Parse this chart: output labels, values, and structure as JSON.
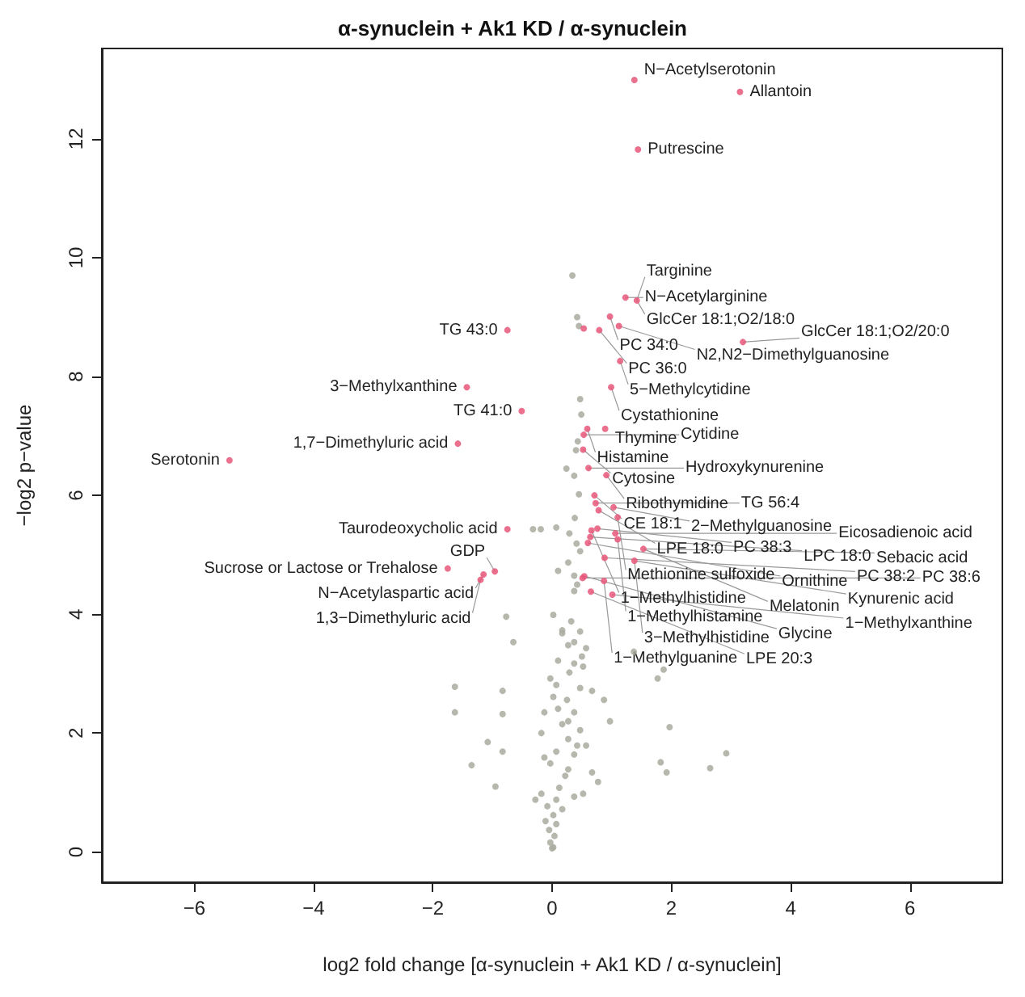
{
  "chart_data": {
    "type": "scatter",
    "title": "α-synuclein + Ak1 KD / α-synuclein",
    "xlabel": "log2 fold change [α-synuclein + Ak1 KD / α-synuclein]",
    "ylabel": "−log2 p−value",
    "xlim": [
      -7.55,
      7.55
    ],
    "ylim": [
      -0.51,
      13.52
    ],
    "xticks": [
      -6,
      -4,
      -2,
      0,
      2,
      4,
      6
    ],
    "yticks": [
      0,
      2,
      4,
      6,
      8,
      10,
      12
    ],
    "grid": false,
    "marker": "circle",
    "series": [
      {
        "color": "#a9ab9f",
        "x": [
          0.34,
          0.42,
          0.45,
          0.47,
          0.49,
          0.43,
          0.4,
          0.24,
          0.37,
          0.45,
          0.38,
          -0.19,
          -0.32,
          0.07,
          0.29,
          0.41,
          0.47,
          0.27,
          0.1,
          0.37,
          0.42,
          0.37,
          -0.77,
          0.02,
          0.32,
          0.47,
          0.17,
          -0.65,
          0.27,
          0.57,
          1.37,
          0.5,
          0.1,
          0.37,
          0.29,
          -0.03,
          0.07,
          -1.63,
          -0.83,
          1.87,
          1.77,
          0.47,
          0.67,
          0.87,
          0.25,
          0.1,
          0.37,
          -0.13,
          -1.63,
          -0.83,
          0.97,
          1.97,
          0.17,
          0.47,
          -0.18,
          0.27,
          0.57,
          -1.08,
          0.07,
          0.37,
          2.92,
          1.82,
          2.65,
          1.92,
          -1.35,
          -0.83,
          -0.03,
          0.27,
          0.67,
          0.77,
          -0.95,
          0.12,
          -0.18,
          0.37,
          -0.08,
          0.17,
          0.02,
          -0.11,
          0.07,
          -0.05,
          0.04,
          -0.03,
          0.0,
          0.02,
          0.17,
          0.37,
          0.52,
          0.02,
          0.27,
          0.42,
          -0.13,
          0.22,
          0.52,
          -0.28,
          0.07
        ],
        "values": [
          9.7,
          9.0,
          8.85,
          7.62,
          7.36,
          6.91,
          6.76,
          6.45,
          6.33,
          6.02,
          5.62,
          5.43,
          5.43,
          5.46,
          5.36,
          5.19,
          5.06,
          4.87,
          4.73,
          4.65,
          4.5,
          4.39,
          3.96,
          3.99,
          3.88,
          3.71,
          3.68,
          3.53,
          3.48,
          3.43,
          3.37,
          3.29,
          3.22,
          3.17,
          3.02,
          2.92,
          2.81,
          2.78,
          2.71,
          3.07,
          2.92,
          2.76,
          2.71,
          2.56,
          2.56,
          2.41,
          2.35,
          2.35,
          2.35,
          2.32,
          2.2,
          2.1,
          2.15,
          2.05,
          2.0,
          1.9,
          1.79,
          1.85,
          1.69,
          1.64,
          1.66,
          1.51,
          1.41,
          1.34,
          1.46,
          1.69,
          1.49,
          1.39,
          1.34,
          1.18,
          1.1,
          1.08,
          0.98,
          0.93,
          0.77,
          0.72,
          0.62,
          0.52,
          0.47,
          0.37,
          0.27,
          0.16,
          0.06,
          0.08,
          3.73,
          3.53,
          3.12,
          2.61,
          2.2,
          1.79,
          1.59,
          1.28,
          0.98,
          0.88,
          0.88
        ]
      },
      {
        "color": "#e8577a",
        "x": [
          1.38,
          3.15,
          1.44,
          1.23,
          1.42,
          0.97,
          0.53,
          0.79,
          1.12,
          3.2,
          1.14,
          0.99,
          -0.75,
          -1.43,
          -0.51,
          -1.58,
          -5.41,
          -0.75,
          -1.75,
          -1.15,
          -1.2,
          -0.96,
          0.89,
          0.59,
          0.53,
          0.52,
          0.61,
          0.91,
          0.71,
          0.73,
          0.78,
          1.03,
          1.1,
          0.76,
          0.66,
          0.64,
          0.6,
          1.06,
          1.1,
          1.53,
          0.88,
          1.38,
          0.54,
          0.51,
          0.87,
          0.65,
          1.01
        ],
        "values": [
          12.99,
          12.79,
          11.82,
          9.33,
          9.28,
          9.01,
          8.81,
          8.78,
          8.85,
          8.58,
          8.26,
          7.82,
          8.78,
          7.82,
          7.42,
          6.87,
          6.59,
          5.43,
          4.77,
          4.67,
          4.58,
          4.72,
          7.12,
          7.12,
          7.02,
          6.77,
          6.46,
          6.34,
          6.0,
          5.87,
          5.75,
          5.8,
          5.63,
          5.44,
          5.41,
          5.3,
          5.2,
          5.36,
          5.26,
          5.1,
          4.95,
          4.9,
          4.64,
          4.61,
          4.56,
          4.38,
          4.33
        ]
      }
    ],
    "annotations": [
      {
        "text": "N−Acetylserotonin",
        "x": 1.38,
        "y": 12.99
      },
      {
        "text": "Allantoin",
        "x": 3.15,
        "y": 12.79
      },
      {
        "text": "Putrescine",
        "x": 1.44,
        "y": 11.82
      },
      {
        "text": "N−Acetylarginine",
        "x": 1.23,
        "y": 9.33
      },
      {
        "text": "GlcCer 18:1;O2/18:0",
        "x": 1.42,
        "y": 9.28
      },
      {
        "text": "Targinine",
        "x": 1.42,
        "y": 9.28
      },
      {
        "text": "PC 34:0",
        "x": 0.97,
        "y": 9.01
      },
      {
        "text": "PC 36:0",
        "x": 0.79,
        "y": 8.78
      },
      {
        "text": "N2,N2−Dimethylguanosine",
        "x": 1.12,
        "y": 8.85
      },
      {
        "text": "GlcCer 18:1;O2/20:0",
        "x": 3.2,
        "y": 8.58
      },
      {
        "text": "5−Methylcytidine",
        "x": 1.14,
        "y": 8.26
      },
      {
        "text": "Cystathionine",
        "x": 0.99,
        "y": 7.82
      },
      {
        "text": "TG 43:0",
        "x": -0.75,
        "y": 8.78
      },
      {
        "text": "3−Methylxanthine",
        "x": -1.43,
        "y": 7.82
      },
      {
        "text": "TG 41:0",
        "x": -0.51,
        "y": 7.42
      },
      {
        "text": "1,7−Dimethyluric acid",
        "x": -1.58,
        "y": 6.87
      },
      {
        "text": "Serotonin",
        "x": -5.41,
        "y": 6.59
      },
      {
        "text": "Taurodeoxycholic acid",
        "x": -0.75,
        "y": 5.43
      },
      {
        "text": "Sucrose or Lactose or Trehalose",
        "x": -1.75,
        "y": 4.77
      },
      {
        "text": "GDP",
        "x": -0.96,
        "y": 4.72
      },
      {
        "text": "N−Acetylaspartic acid",
        "x": -1.15,
        "y": 4.67
      },
      {
        "text": "1,3−Dimethyluric acid",
        "x": -1.2,
        "y": 4.58
      },
      {
        "text": "Thymine",
        "x": 0.89,
        "y": 7.12
      },
      {
        "text": "Histamine",
        "x": 0.59,
        "y": 7.12
      },
      {
        "text": "Cytidine",
        "x": 0.53,
        "y": 7.02
      },
      {
        "text": "Cytosine",
        "x": 0.52,
        "y": 6.77
      },
      {
        "text": "Hydroxykynurenine",
        "x": 0.61,
        "y": 6.46
      },
      {
        "text": "Ribothymidine",
        "x": 0.91,
        "y": 6.34
      },
      {
        "text": "CE 18:1",
        "x": 0.71,
        "y": 6.0
      },
      {
        "text": "TG 56:4",
        "x": 0.73,
        "y": 5.87
      },
      {
        "text": "2−Methylguanosine",
        "x": 1.03,
        "y": 5.8
      },
      {
        "text": "LPE 18:0",
        "x": 0.78,
        "y": 5.75
      },
      {
        "text": "Methionine sulfoxide",
        "x": 1.1,
        "y": 5.63
      },
      {
        "text": "PC 38:3",
        "x": 0.76,
        "y": 5.44
      },
      {
        "text": "1−Methylhistidine",
        "x": 0.66,
        "y": 5.41
      },
      {
        "text": "Eicosadienoic acid",
        "x": 1.06,
        "y": 5.36
      },
      {
        "text": "LPC 18:0",
        "x": 0.64,
        "y": 5.3
      },
      {
        "text": "1−Methylhistamine",
        "x": 1.1,
        "y": 5.26
      },
      {
        "text": "Ornithine",
        "x": 0.6,
        "y": 5.2
      },
      {
        "text": "Sebacic acid",
        "x": 1.53,
        "y": 5.1
      },
      {
        "text": "Melatonin",
        "x": 1.53,
        "y": 5.1
      },
      {
        "text": "3−Methylhistidine",
        "x": 1.38,
        "y": 4.9
      },
      {
        "text": "PC 38:2",
        "x": 0.88,
        "y": 4.95
      },
      {
        "text": "Kynurenic acid",
        "x": 1.38,
        "y": 4.9
      },
      {
        "text": "1−Methylguanine",
        "x": 0.87,
        "y": 4.56
      },
      {
        "text": "Glycine",
        "x": 0.54,
        "y": 4.64
      },
      {
        "text": "PC 38:6",
        "x": 0.51,
        "y": 4.61
      },
      {
        "text": "1−Methylxanthine",
        "x": 1.01,
        "y": 4.33
      },
      {
        "text": "LPE 20:3",
        "x": 0.65,
        "y": 4.38
      }
    ]
  }
}
